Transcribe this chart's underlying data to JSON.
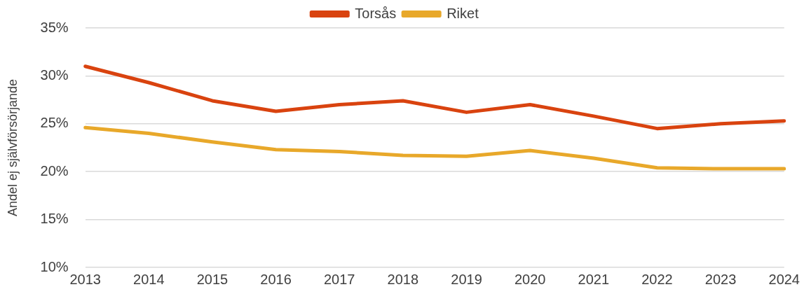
{
  "chart_data": {
    "type": "line",
    "ylabel": "Andel ej självförsörjande",
    "categories": [
      "2013",
      "2014",
      "2015",
      "2016",
      "2017",
      "2018",
      "2019",
      "2020",
      "2021",
      "2022",
      "2023",
      "2024"
    ],
    "series": [
      {
        "name": "Torsås",
        "color": "#d9430f",
        "values": [
          31.0,
          29.3,
          27.4,
          26.3,
          27.0,
          27.4,
          26.2,
          27.0,
          25.8,
          24.5,
          25.0,
          25.3
        ]
      },
      {
        "name": "Riket",
        "color": "#e8a82a",
        "values": [
          24.6,
          24.0,
          23.1,
          22.3,
          22.1,
          21.7,
          21.6,
          22.2,
          21.4,
          20.4,
          20.3,
          20.3
        ]
      }
    ],
    "ylim": [
      10,
      35
    ],
    "yticks": [
      {
        "value": 10,
        "label": "10%"
      },
      {
        "value": 15,
        "label": "15%"
      },
      {
        "value": 20,
        "label": "20%"
      },
      {
        "value": 25,
        "label": "25%"
      },
      {
        "value": 30,
        "label": "30%"
      },
      {
        "value": 35,
        "label": "35%"
      }
    ],
    "grid": "y",
    "legend": "top",
    "marker": "none",
    "line_style": "solid"
  }
}
